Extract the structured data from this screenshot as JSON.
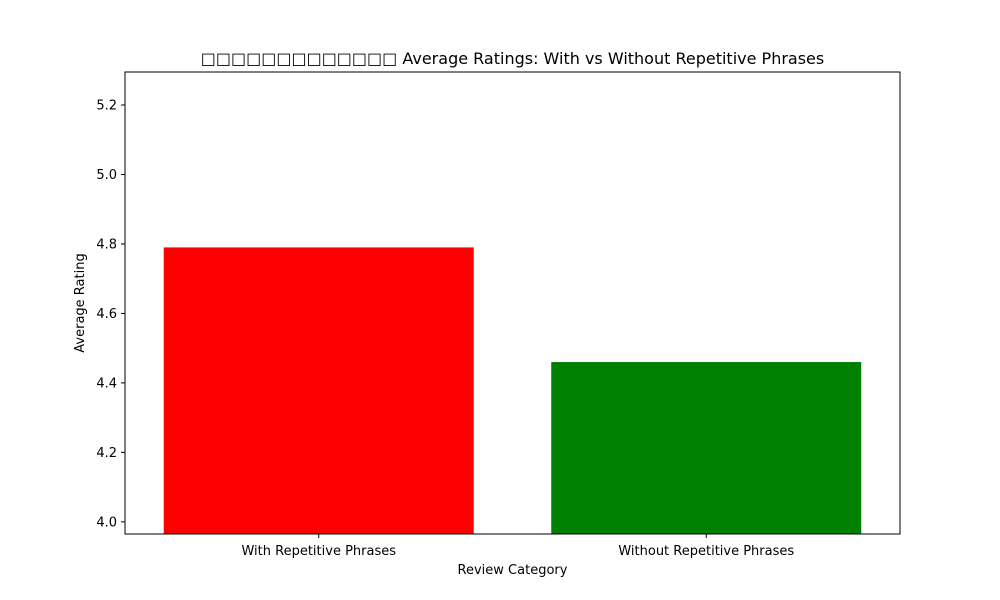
{
  "chart_data": {
    "type": "bar",
    "title": "□□□□□□□□□□□□□ Average Ratings: With vs Without Repetitive Phrases",
    "xlabel": "Review Category",
    "ylabel": "Average Rating",
    "categories": [
      "With Repetitive Phrases",
      "Without Repetitive Phrases"
    ],
    "values": [
      4.79,
      4.46
    ],
    "colors": [
      "#ff0000",
      "#008000"
    ],
    "ylim": [
      3.965,
      5.295
    ],
    "yticks": [
      4.0,
      4.2,
      4.4,
      4.6,
      4.8,
      5.0,
      5.2
    ],
    "ytick_labels": [
      "4.0",
      "4.2",
      "4.4",
      "4.6",
      "4.8",
      "5.0",
      "5.2"
    ],
    "grid": false,
    "legend": "none"
  }
}
